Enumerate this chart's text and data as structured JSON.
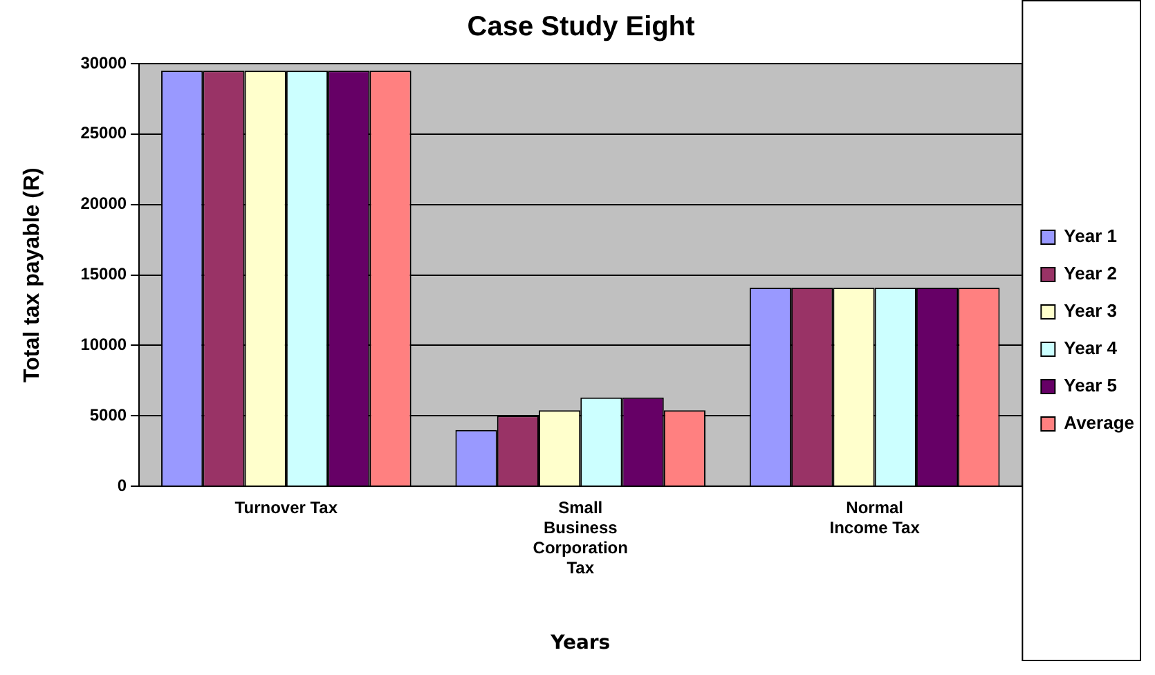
{
  "chart_data": {
    "type": "bar",
    "title": "Case Study Eight",
    "xlabel": "Years",
    "ylabel": "Total tax payable (R)",
    "categories": [
      "Turnover Tax",
      "Small Business Corporation Tax",
      "Normal Income Tax"
    ],
    "series": [
      {
        "name": "Year 1",
        "color": "#9999ff",
        "values": [
          29500,
          4000,
          14100
        ]
      },
      {
        "name": "Year 2",
        "color": "#993366",
        "values": [
          29500,
          5000,
          14100
        ]
      },
      {
        "name": "Year 3",
        "color": "#ffffcc",
        "values": [
          29500,
          5400,
          14100
        ]
      },
      {
        "name": "Year 4",
        "color": "#ccffff",
        "values": [
          29500,
          6300,
          14100
        ]
      },
      {
        "name": "Year 5",
        "color": "#660066",
        "values": [
          29500,
          6300,
          14100
        ]
      },
      {
        "name": "Average",
        "color": "#ff8080",
        "values": [
          29500,
          5400,
          14100
        ]
      }
    ],
    "ylim": [
      0,
      30000
    ],
    "yticks": [
      0,
      5000,
      10000,
      15000,
      20000,
      25000,
      30000
    ],
    "grid": "y",
    "legend": "right"
  }
}
